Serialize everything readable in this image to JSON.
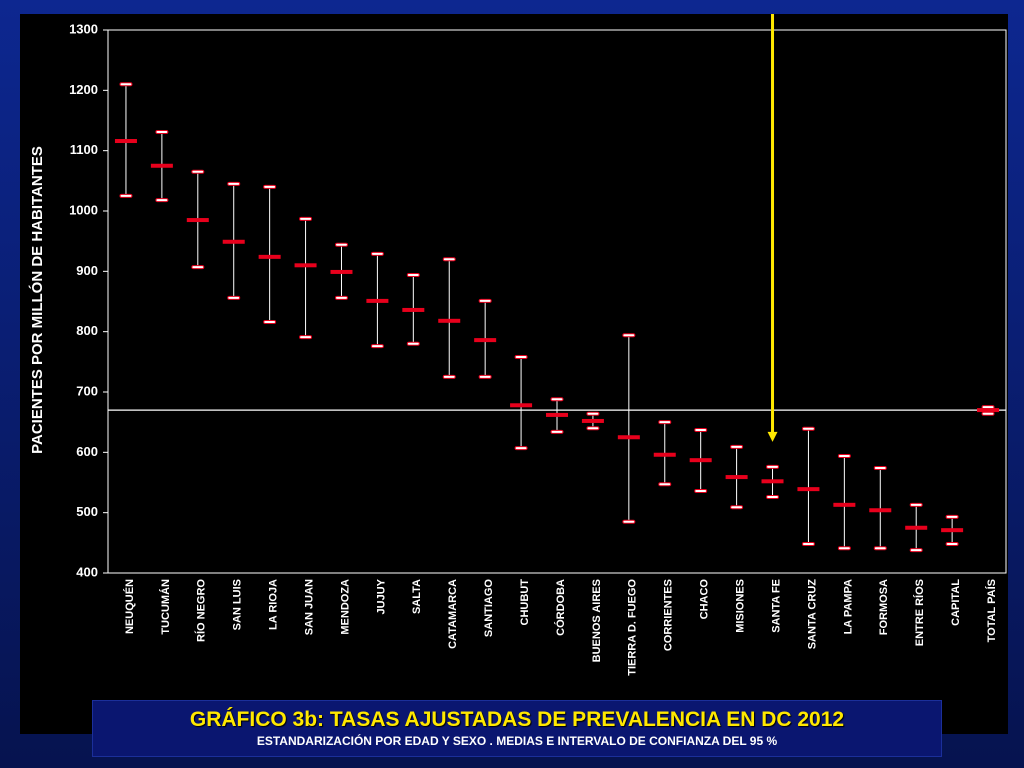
{
  "chart_data": {
    "type": "errorbar",
    "title": "GRÁFICO 3b: TASAS  AJUSTADAS  DE PREVALENCIA EN DC 2012",
    "subtitle": "ESTANDARIZACIÓN POR EDAD Y SEXO . MEDIAS E INTERVALO DE CONFIANZA DEL 95 %",
    "y_label": "PACIENTES POR MILLÓN DE HABITANTES",
    "categories": [
      "NEUQUÉN",
      "TUCUMÁN",
      "RÍO NEGRO",
      "SAN LUIS",
      "LA RIOJA",
      "SAN JUAN",
      "MENDOZA",
      "JUJUY",
      "SALTA",
      "CATAMARCA",
      "SANTIAGO",
      "CHUBUT",
      "CÓRDOBA",
      "BUENOS AIRES",
      "TIERRA D. FUEGO",
      "CORRIENTES",
      "CHACO",
      "MISIONES",
      "SANTA FE",
      "SANTA CRUZ",
      "LA PAMPA",
      "FORMOSA",
      "ENTRE RÍOS",
      "CAPITAL",
      "TOTAL PAÍS"
    ],
    "values": [
      1116,
      1075,
      985,
      949,
      924,
      910,
      899,
      851,
      836,
      818,
      786,
      678,
      662,
      652,
      625,
      596,
      587,
      559,
      552,
      539,
      513,
      504,
      475,
      471,
      670
    ],
    "lower": [
      1025,
      1018,
      907,
      856,
      816,
      791,
      856,
      776,
      780,
      725,
      725,
      607,
      634,
      640,
      485,
      547,
      536,
      509,
      526,
      448,
      441,
      441,
      438,
      448,
      664
    ],
    "upper": [
      1210,
      1131,
      1065,
      1045,
      1040,
      987,
      944,
      929,
      894,
      920,
      851,
      758,
      688,
      664,
      794,
      650,
      637,
      609,
      576,
      639,
      594,
      574,
      513,
      493,
      675
    ],
    "color": "#e8001c",
    "whisker_color": "#ffffff",
    "ylim": [
      400,
      1300
    ],
    "yticks": [
      400,
      500,
      600,
      700,
      800,
      900,
      1000,
      1100,
      1200,
      1300
    ],
    "reference_line_category": 24,
    "arrow_category": 18,
    "arrow_color": "#ffe800"
  }
}
